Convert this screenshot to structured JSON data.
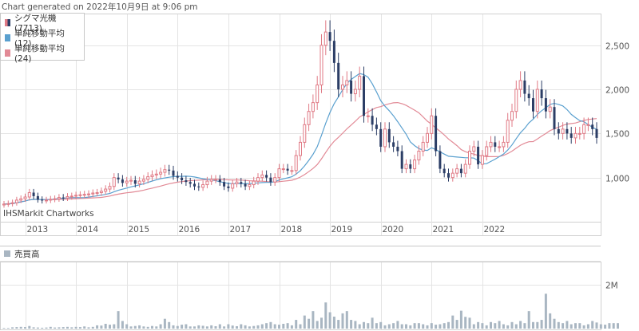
{
  "header": {
    "generated": "Chart generated on 2022年10月9日 at 9:06 pm"
  },
  "credit": "IHSMarkit Chartworks",
  "legend": {
    "price": "シグマ光機(7713)",
    "sma12": "単純移動平均 (12)",
    "sma24": "単純移動平均 (24)",
    "volume": "売買高"
  },
  "colors": {
    "up": "#e07a85",
    "down": "#2c3e66",
    "sma12": "#5aa0cf",
    "sma24": "#e28a96",
    "volume": "#a9b6c2",
    "grid": "#e4e4e4"
  },
  "chart_data": [
    {
      "type": "candlestick",
      "interval": "monthly",
      "x_tick_labels": [
        "2013",
        "2014",
        "2015",
        "2016",
        "2017",
        "2018",
        "2019",
        "2020",
        "2021",
        "2022"
      ],
      "y_tick_labels": [
        "1,000",
        "1,500",
        "2,000",
        "2,500"
      ],
      "ylim": [
        500,
        2850
      ],
      "series": [
        {
          "name": "シグマ光機(7713)",
          "values": [
            700,
            705,
            715,
            745,
            760,
            780,
            830,
            790,
            750,
            740,
            745,
            755,
            760,
            775,
            770,
            785,
            790,
            800,
            805,
            810,
            815,
            825,
            830,
            845,
            870,
            900,
            1000,
            980,
            940,
            960,
            970,
            930,
            960,
            980,
            1010,
            1030,
            1040,
            1060,
            1090,
            1080,
            1020,
            1000,
            970,
            950,
            930,
            900,
            890,
            920,
            960,
            980,
            980,
            950,
            900,
            880,
            930,
            950,
            930,
            900,
            920,
            960,
            1000,
            1030,
            1000,
            950,
            1000,
            1100,
            1100,
            1080,
            1080,
            1250,
            1400,
            1600,
            1750,
            1850,
            2050,
            2500,
            2650,
            2550,
            2300,
            2000,
            2050,
            2100,
            1950,
            2000,
            2150,
            1700,
            1700,
            1600,
            1550,
            1350,
            1550,
            1400,
            1350,
            1300,
            1100,
            1150,
            1100,
            1200,
            1300,
            1400,
            1500,
            1700,
            1300,
            1100,
            1050,
            1000,
            1050,
            1100,
            1050,
            1150,
            1300,
            1350,
            1150,
            1250,
            1350,
            1400,
            1350,
            1350,
            1400,
            1650,
            1750,
            2000,
            2100,
            1950,
            1900,
            1750,
            2000,
            1900,
            1750,
            1800,
            1550,
            1500,
            1550,
            1500,
            1450,
            1500,
            1500,
            1600,
            1600,
            1550,
            1450
          ]
        },
        {
          "name": "単純移動平均 (12)"
        },
        {
          "name": "単純移動平均 (24)"
        }
      ]
    },
    {
      "type": "bar",
      "title": "売買高",
      "y_tick_labels": [
        "2M"
      ],
      "ylim": [
        0,
        3000000
      ],
      "values": [
        30000,
        30000,
        60000,
        70000,
        80000,
        70000,
        120000,
        60000,
        50000,
        40000,
        50000,
        80000,
        50000,
        60000,
        70000,
        80000,
        60000,
        80000,
        70000,
        100000,
        60000,
        80000,
        150000,
        140000,
        220000,
        180000,
        200000,
        800000,
        350000,
        200000,
        100000,
        120000,
        150000,
        100000,
        80000,
        120000,
        100000,
        200000,
        450000,
        300000,
        150000,
        120000,
        180000,
        200000,
        100000,
        100000,
        150000,
        130000,
        100000,
        150000,
        110000,
        200000,
        100000,
        200000,
        140000,
        110000,
        200000,
        150000,
        100000,
        120000,
        150000,
        200000,
        250000,
        300000,
        200000,
        180000,
        220000,
        250000,
        150000,
        400000,
        200000,
        600000,
        450000,
        800000,
        350000,
        500000,
        1200000,
        750000,
        550000,
        400000,
        700000,
        800000,
        400000,
        350000,
        200000,
        300000,
        250000,
        500000,
        250000,
        300000,
        150000,
        200000,
        250000,
        350000,
        200000,
        200000,
        150000,
        250000,
        250000,
        200000,
        150000,
        250000,
        180000,
        200000,
        250000,
        300000,
        600000,
        400000,
        820000,
        540000,
        500000,
        200000,
        300000,
        250000,
        150000,
        300000,
        250000,
        350000,
        200000,
        150000,
        300000,
        200000,
        350000,
        250000,
        800000,
        300000,
        300000,
        400000,
        1600000,
        700000,
        450000,
        300000,
        250000,
        350000,
        200000,
        250000,
        250000,
        150000,
        200000,
        350000,
        280000,
        200000,
        180000,
        250000,
        250000,
        250000
      ]
    }
  ]
}
